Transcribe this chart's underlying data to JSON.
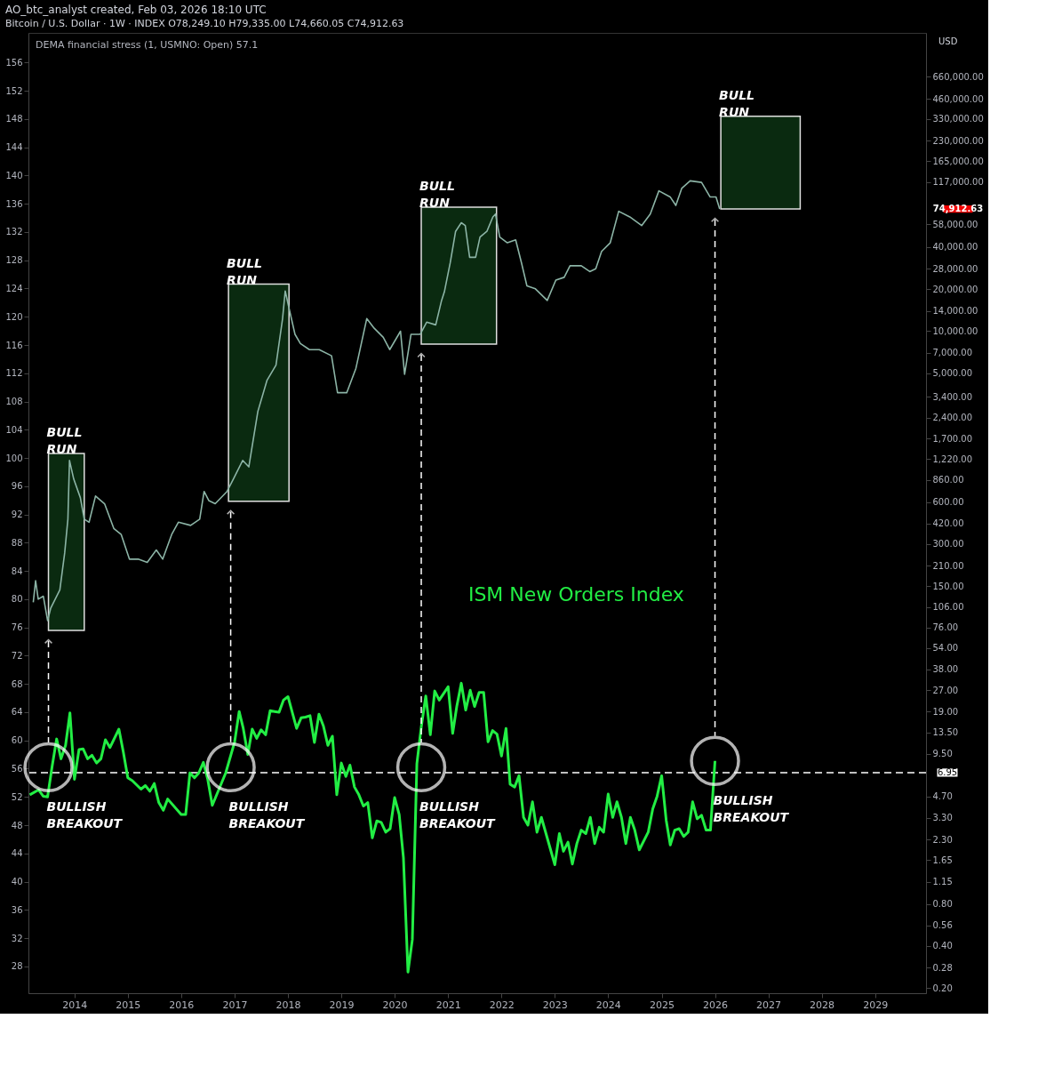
{
  "chart_data": {
    "type": "line",
    "title": "AO_btc_analyst created, Feb 03, 2026 18:10 UTC",
    "subtitle": "Bitcoin / U.S. Dollar · 1W · INDEX O78,249.10 H79,335.00 L74,660.05 C74,912.63",
    "annotations": [
      "DEMA financial stress (1, USMNO: Open) 57.1",
      "USD",
      "74,912.63",
      {
        "text": "BULLISH BREAKOUT",
        "x": "2013-07-07",
        "y": 56.2
      },
      {
        "text": "BULLISH BREAKOUT",
        "x": "2016-12-05",
        "y": 56.2
      },
      {
        "text": "BULLISH BREAKOUT",
        "x": "2020-07-01",
        "y": 56.2
      },
      {
        "text": "BULLISH BREAKOUT",
        "x": "2026-01",
        "y": 57.1
      }
    ],
    "series": [
      {
        "name": "ISM New Orders Index",
        "color": "#22ee44",
        "x": [
          "2013-03",
          "2013-05",
          "2013-06",
          "2013-07",
          "2013-08",
          "2013-09",
          "2013-10",
          "2013-11",
          "2013-12",
          "2014-01",
          "2014-02",
          "2014-03",
          "2014-04",
          "2014-05",
          "2014-06",
          "2014-07",
          "2014-08",
          "2014-09",
          "2014-11",
          "2014-12",
          "2015-01",
          "2015-02",
          "2015-04",
          "2015-05",
          "2015-06",
          "2015-07",
          "2015-08",
          "2015-09",
          "2015-10",
          "2016-01",
          "2016-02",
          "2016-03",
          "2016-04",
          "2016-05",
          "2016-06",
          "2016-07",
          "2016-08",
          "2016-11",
          "2017-01",
          "2017-02",
          "2017-03",
          "2017-04",
          "2017-05",
          "2017-06",
          "2017-07",
          "2017-08",
          "2017-09",
          "2017-10",
          "2017-11",
          "2017-12",
          "2018-01",
          "2018-03",
          "2018-04",
          "2018-05",
          "2018-06",
          "2018-07",
          "2018-08",
          "2018-09",
          "2018-10",
          "2018-11",
          "2018-12",
          "2019-01",
          "2019-02",
          "2019-03",
          "2019-04",
          "2019-05",
          "2019-06",
          "2019-07",
          "2019-08",
          "2019-09",
          "2019-10",
          "2019-11",
          "2019-12",
          "2020-01",
          "2020-02",
          "2020-03",
          "2020-04",
          "2020-05",
          "2020-06",
          "2020-07",
          "2020-08",
          "2020-09",
          "2020-10",
          "2020-11",
          "2021-01",
          "2021-02",
          "2021-03",
          "2021-04",
          "2021-05",
          "2021-06",
          "2021-07",
          "2021-08",
          "2021-09",
          "2021-10",
          "2021-11",
          "2021-12",
          "2022-01",
          "2022-02",
          "2022-03",
          "2022-04",
          "2022-05",
          "2022-06",
          "2022-07",
          "2022-08",
          "2022-09",
          "2022-10",
          "2023-01",
          "2023-02",
          "2023-03",
          "2023-04",
          "2023-05",
          "2023-06",
          "2023-07",
          "2023-08",
          "2023-09",
          "2023-10",
          "2023-11",
          "2023-12",
          "2024-01",
          "2024-02",
          "2024-03",
          "2024-04",
          "2024-05",
          "2024-06",
          "2024-07",
          "2024-08",
          "2024-10",
          "2024-11",
          "2024-12",
          "2025-01",
          "2025-02",
          "2025-03",
          "2025-04",
          "2025-05",
          "2025-06",
          "2025-07",
          "2025-08",
          "2025-09",
          "2025-10",
          "2025-11",
          "2025-12",
          "2026-01"
        ],
        "values": [
          52.3,
          53.0,
          52.1,
          52.0,
          56.3,
          60.2,
          57.4,
          59.3,
          63.9,
          54.5,
          58.7,
          58.8,
          57.4,
          57.9,
          56.8,
          57.4,
          60.1,
          59.0,
          61.6,
          58.4,
          54.7,
          54.3,
          53.1,
          53.6,
          52.8,
          53.9,
          51.2,
          50.1,
          51.7,
          49.5,
          49.5,
          55.4,
          54.7,
          55.4,
          56.9,
          54.5,
          50.8,
          55.4,
          59.8,
          64.1,
          61.7,
          58.0,
          61.6,
          60.3,
          61.5,
          60.8,
          64.2,
          64.1,
          64.0,
          65.7,
          66.2,
          61.7,
          63.2,
          63.3,
          63.5,
          59.7,
          63.7,
          62.0,
          59.3,
          60.6,
          52.3,
          56.8,
          54.9,
          56.5,
          53.4,
          52.3,
          50.7,
          51.2,
          46.2,
          48.6,
          48.4,
          47.0,
          47.5,
          51.9,
          49.5,
          43.4,
          27.2,
          31.8,
          56.7,
          61.9,
          66.3,
          60.8,
          67.0,
          65.7,
          67.6,
          61.0,
          64.8,
          68.1,
          64.3,
          67.1,
          64.8,
          66.8,
          66.8,
          59.8,
          61.4,
          60.9,
          57.8,
          61.7,
          53.8,
          53.4,
          55.0,
          49.1,
          48.0,
          51.3,
          47.0,
          49.1,
          42.4,
          46.8,
          44.3,
          45.6,
          42.5,
          45.4,
          47.3,
          46.8,
          49.1,
          45.4,
          47.7,
          47.0,
          52.4,
          49.1,
          51.3,
          49.1,
          45.4,
          49.1,
          47.3,
          44.5,
          47.0,
          50.3,
          52.1,
          55.0,
          48.7,
          45.2,
          47.3,
          47.5,
          46.4,
          47.0,
          51.3,
          48.9,
          49.4,
          47.3,
          47.3,
          57.1
        ]
      },
      {
        "axis": "y2",
        "color": "#8cb4a6",
        "x": [
          "2013-03-25",
          "2013-04-10",
          "2013-04-28",
          "2013-06-02",
          "2013-07-01",
          "2013-07-22",
          "2013-09-23",
          "2013-10-26",
          "2013-11-17",
          "2013-11-28",
          "2013-12-27",
          "2014-02-10",
          "2014-03-09",
          "2014-04-11",
          "2014-05-25",
          "2014-07-26",
          "2014-09-27",
          "2014-11-17",
          "2015-01-12",
          "2015-03-13",
          "2015-05-14",
          "2015-07-15",
          "2015-08-28",
          "2015-10-28",
          "2015-12-13",
          "2016-03-06",
          "2016-05-07",
          "2016-06-06",
          "2016-07-08",
          "2016-08-21",
          "2016-11-10",
          "2016-12-23",
          "2017-02-25",
          "2017-04-08",
          "2017-06-09",
          "2017-08-10",
          "2017-10-11",
          "2017-11-25",
          "2017-12-13",
          "2018-01-15",
          "2018-02-18",
          "2018-03-27",
          "2018-05-28",
          "2018-08-03",
          "2018-10-26",
          "2018-12-06",
          "2019-02-07",
          "2019-04-11",
          "2019-06-24",
          "2019-08-14",
          "2019-10-15",
          "2019-11-28",
          "2020-02-10",
          "2020-03-09",
          "2020-04-22",
          "2020-06-24",
          "2020-08-07",
          "2020-10-08",
          "2020-11-17",
          "2020-12-06",
          "2021-01-15",
          "2021-02-21",
          "2021-04-01",
          "2021-04-28",
          "2021-05-28",
          "2021-07-08",
          "2021-08-07",
          "2021-09-23",
          "2021-11-03",
          "2021-11-21",
          "2021-12-20",
          "2022-02-10",
          "2022-04-08",
          "2022-05-18",
          "2022-06-24",
          "2022-08-21",
          "2022-11-10",
          "2023-01-08",
          "2023-03-06",
          "2023-04-15",
          "2023-07-01",
          "2023-08-28",
          "2023-10-08",
          "2023-11-17",
          "2024-01-15",
          "2024-03-13",
          "2024-05-28",
          "2024-08-17",
          "2024-10-15",
          "2024-12-13",
          "2025-02-28",
          "2025-04-08",
          "2025-05-18",
          "2025-07-15",
          "2025-10-01",
          "2025-11-28",
          "2026-01-08",
          "2026-02-02"
        ],
        "values": [
          115,
          164,
          121,
          127,
          85,
          104,
          141,
          259,
          452,
          1190,
          875,
          645,
          452,
          430,
          662,
          583,
          388,
          351,
          234,
          234,
          222,
          272,
          234,
          351,
          430,
          408,
          452,
          714,
          614,
          583,
          714,
          875,
          1190,
          1070,
          2670,
          4440,
          5720,
          12300,
          19400,
          13600,
          9500,
          8160,
          7380,
          7380,
          6670,
          3630,
          3630,
          5430,
          12300,
          10500,
          9040,
          7380,
          10000,
          4920,
          9500,
          9500,
          11600,
          11100,
          16600,
          19100,
          30800,
          51800,
          59700,
          57000,
          33800,
          33800,
          47100,
          51800,
          65700,
          68900,
          47100,
          42900,
          45000,
          30800,
          21100,
          20100,
          16600,
          23200,
          24300,
          29400,
          29400,
          26700,
          28000,
          37200,
          42900,
          72100,
          65700,
          57000,
          68900,
          101000,
          91400,
          79400,
          105000,
          119000,
          116000,
          91400,
          91400,
          74912.63
        ]
      }
    ],
    "bands": [
      {
        "axis": "x",
        "from": "2013-07-07",
        "to": "2014-03-09",
        "label": "BULL RUN",
        "color": "#0a2a10"
      },
      {
        "axis": "x",
        "from": "2016-11-20",
        "to": "2018-01-08",
        "label": "BULL RUN",
        "color": "#0a2a10"
      },
      {
        "axis": "x",
        "from": "2020-07-01",
        "to": "2021-11-28",
        "label": "BULL RUN",
        "color": "#0a2a10"
      },
      {
        "axis": "x",
        "from": "2026-02-10",
        "to": "2027-08-07",
        "label": "BULL RUN",
        "color": "#0a2a10"
      }
    ],
    "ref_lines": [
      {
        "axis": "y2",
        "value": 6.95,
        "label": "6.95",
        "color": "#ffffff",
        "line_style": "dashed"
      }
    ],
    "xlim": [
      "2013-02-20",
      "2029-12-15"
    ],
    "xticks": [
      "2014",
      "2015",
      "2016",
      "2017",
      "2018",
      "2019",
      "2020",
      "2021",
      "2022",
      "2023",
      "2024",
      "2025",
      "2026",
      "2027",
      "2028",
      "2029"
    ],
    "ylim": [
      24.2,
      160.2
    ],
    "yticks": [
      28,
      32,
      36,
      40,
      44,
      48,
      52,
      56,
      60,
      64,
      68,
      72,
      76,
      80,
      84,
      88,
      92,
      96,
      100,
      104,
      108,
      112,
      116,
      120,
      124,
      128,
      132,
      136,
      140,
      144,
      148,
      152,
      156
    ],
    "log": "y2",
    "y2lim": [
      0.1836,
      1362000
    ],
    "y2ticks": [
      {
        "value": 0.2,
        "label": "0.20"
      },
      {
        "value": 0.28,
        "label": "0.28"
      },
      {
        "value": 0.4,
        "label": "0.40"
      },
      {
        "value": 0.56,
        "label": "0.56"
      },
      {
        "value": 0.8,
        "label": "0.80"
      },
      {
        "value": 1.15,
        "label": "1.15"
      },
      {
        "value": 1.65,
        "label": "1.65"
      },
      {
        "value": 2.3,
        "label": "2.30"
      },
      {
        "value": 3.3,
        "label": "3.30"
      },
      {
        "value": 4.7,
        "label": "4.70"
      },
      {
        "value": 9.5,
        "label": "9.50"
      },
      {
        "value": 13.5,
        "label": "13.50"
      },
      {
        "value": 19,
        "label": "19.00"
      },
      {
        "value": 27,
        "label": "27.00"
      },
      {
        "value": 38,
        "label": "38.00"
      },
      {
        "value": 54,
        "label": "54.00"
      },
      {
        "value": 76,
        "label": "76.00"
      },
      {
        "value": 106,
        "label": "106.00"
      },
      {
        "value": 150,
        "label": "150.00"
      },
      {
        "value": 210,
        "label": "210.00"
      },
      {
        "value": 300,
        "label": "300.00"
      },
      {
        "value": 420,
        "label": "420.00"
      },
      {
        "value": 600,
        "label": "600.00"
      },
      {
        "value": 860,
        "label": "860.00"
      },
      {
        "value": 1220,
        "label": "1,220.00"
      },
      {
        "value": 1700,
        "label": "1,700.00"
      },
      {
        "value": 2400,
        "label": "2,400.00"
      },
      {
        "value": 3400,
        "label": "3,400.00"
      },
      {
        "value": 5000,
        "label": "5,000.00"
      },
      {
        "value": 7000,
        "label": "7,000.00"
      },
      {
        "value": 10000,
        "label": "10,000.00"
      },
      {
        "value": 14000,
        "label": "14,000.00"
      },
      {
        "value": 20000,
        "label": "20,000.00"
      },
      {
        "value": 28000,
        "label": "28,000.00"
      },
      {
        "value": 40000,
        "label": "40,000.00"
      },
      {
        "value": 58000,
        "label": "58,000.00"
      },
      {
        "value": 117000,
        "label": "117,000.00"
      },
      {
        "value": 165000,
        "label": "165,000.00"
      },
      {
        "value": 230000,
        "label": "230,000.00"
      },
      {
        "value": 330000,
        "label": "330,000.00"
      },
      {
        "value": 460000,
        "label": "460,000.00"
      },
      {
        "value": 660000,
        "label": "660,000.00"
      }
    ],
    "grid": false
  }
}
